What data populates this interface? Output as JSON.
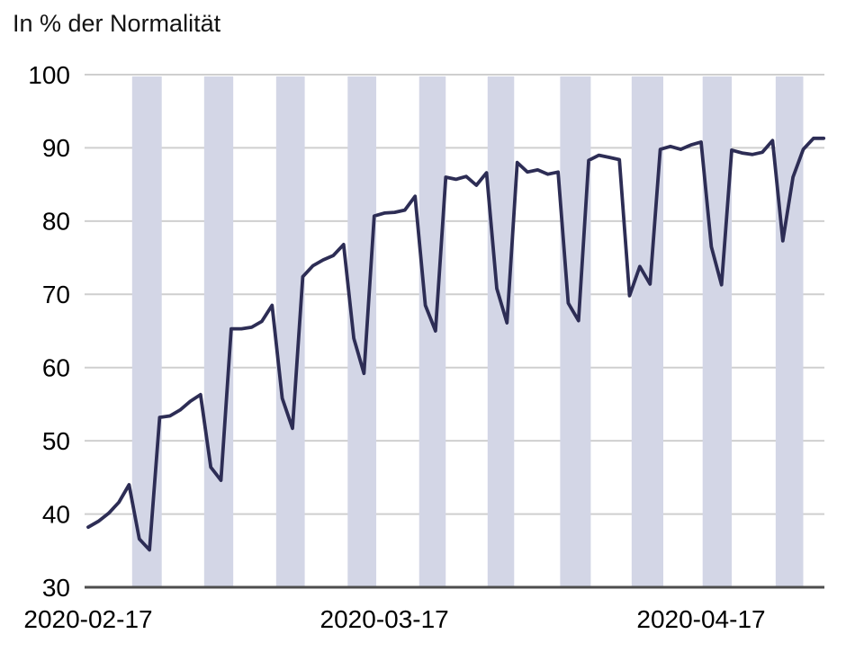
{
  "chart_data": {
    "type": "line",
    "title": "In % der Normalität",
    "xlabel": "",
    "ylabel": "In % der Normalität",
    "grid": "horizontal",
    "legend": "none",
    "ylim": [
      30,
      100
    ],
    "yticks": [
      30,
      40,
      50,
      60,
      70,
      80,
      90,
      100
    ],
    "xtick_labels": [
      "2020-02-17",
      "2020-03-17",
      "2020-04-17"
    ],
    "x": [
      "2020-02-17",
      "2020-02-18",
      "2020-02-19",
      "2020-02-20",
      "2020-02-21",
      "2020-02-22",
      "2020-02-23",
      "2020-02-24",
      "2020-02-25",
      "2020-02-26",
      "2020-02-27",
      "2020-02-28",
      "2020-02-29",
      "2020-03-01",
      "2020-03-02",
      "2020-03-03",
      "2020-03-04",
      "2020-03-05",
      "2020-03-06",
      "2020-03-07",
      "2020-03-08",
      "2020-03-09",
      "2020-03-10",
      "2020-03-11",
      "2020-03-12",
      "2020-03-13",
      "2020-03-14",
      "2020-03-15",
      "2020-03-16",
      "2020-03-17",
      "2020-03-18",
      "2020-03-19",
      "2020-03-20",
      "2020-03-21",
      "2020-03-22",
      "2020-03-23",
      "2020-03-24",
      "2020-03-25",
      "2020-03-26",
      "2020-03-27",
      "2020-03-28",
      "2020-03-29",
      "2020-03-30",
      "2020-03-31",
      "2020-04-01",
      "2020-04-02",
      "2020-04-03",
      "2020-04-04",
      "2020-04-05",
      "2020-04-06",
      "2020-04-07",
      "2020-04-08",
      "2020-04-09",
      "2020-04-10",
      "2020-04-11",
      "2020-04-12",
      "2020-04-13",
      "2020-04-14",
      "2020-04-15",
      "2020-04-16",
      "2020-04-17",
      "2020-04-18",
      "2020-04-19",
      "2020-04-20",
      "2020-04-21",
      "2020-04-22",
      "2020-04-23",
      "2020-04-24",
      "2020-04-25",
      "2020-04-26",
      "2020-04-27",
      "2020-04-28",
      "2020-04-29"
    ],
    "values": [
      38.2,
      39.0,
      40.1,
      41.6,
      44.0,
      36.6,
      35.1,
      53.2,
      53.4,
      54.2,
      55.4,
      56.3,
      46.4,
      44.6,
      65.3,
      65.3,
      65.5,
      66.3,
      68.5,
      55.8,
      51.7,
      72.4,
      73.9,
      74.7,
      75.3,
      76.8,
      64.0,
      59.2,
      80.7,
      81.1,
      81.2,
      81.5,
      83.4,
      68.5,
      65.0,
      86.0,
      85.7,
      86.1,
      84.9,
      86.6,
      70.8,
      66.1,
      88.0,
      86.7,
      87.0,
      86.4,
      86.7,
      68.8,
      66.4,
      88.3,
      89.0,
      88.7,
      88.4,
      69.8,
      73.8,
      71.4,
      89.8,
      90.2,
      89.8,
      90.4,
      90.8,
      76.5,
      71.3,
      89.7,
      89.3,
      89.1,
      89.4,
      91.0,
      77.3,
      86.0,
      89.8,
      91.3,
      91.3
    ],
    "weekend_bands_day_ranges": [
      [
        4.3,
        7.2
      ],
      [
        11.35,
        14.2
      ],
      [
        18.4,
        21.2
      ],
      [
        25.4,
        28.2
      ],
      [
        32.4,
        35.0
      ],
      [
        39.1,
        41.7
      ],
      [
        46.2,
        49.2
      ],
      [
        53.2,
        56.3
      ],
      [
        60.15,
        63.0
      ],
      [
        67.3,
        70.0
      ]
    ],
    "colors": {
      "line": "#2d2d55",
      "weekend_band": "#d3d6e6",
      "gridline": "#cfcfcf",
      "axis": "#4d4d4d",
      "text": "#000000",
      "background": "#ffffff"
    }
  }
}
